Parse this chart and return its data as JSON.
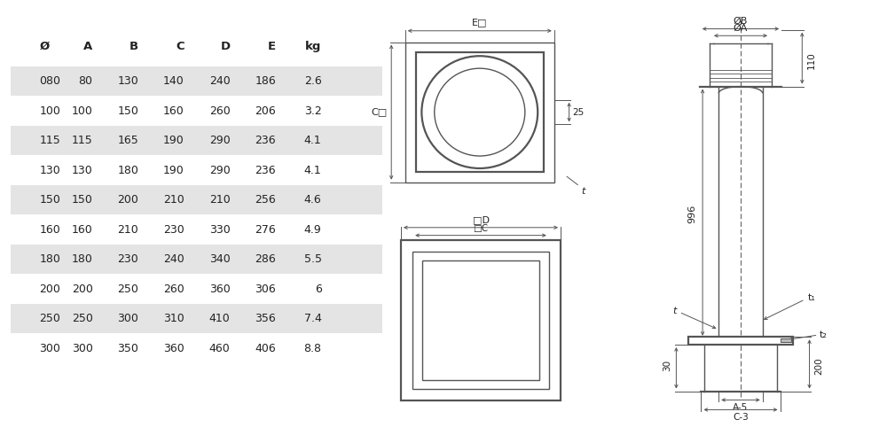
{
  "bg_color": "#ffffff",
  "line_color": "#555555",
  "dim_color": "#555555",
  "table_headers": [
    "Ø",
    "A",
    "B",
    "C",
    "D",
    "E",
    "kg"
  ],
  "table_data": [
    [
      "080",
      "80",
      "130",
      "140",
      "240",
      "186",
      "2.6"
    ],
    [
      "100",
      "100",
      "150",
      "160",
      "260",
      "206",
      "3.2"
    ],
    [
      "115",
      "115",
      "165",
      "190",
      "290",
      "236",
      "4.1"
    ],
    [
      "130",
      "130",
      "180",
      "190",
      "290",
      "236",
      "4.1"
    ],
    [
      "150",
      "150",
      "200",
      "210",
      "210",
      "256",
      "4.6"
    ],
    [
      "160",
      "160",
      "210",
      "230",
      "330",
      "276",
      "4.9"
    ],
    [
      "180",
      "180",
      "230",
      "240",
      "340",
      "286",
      "5.5"
    ],
    [
      "200",
      "200",
      "250",
      "260",
      "360",
      "306",
      "6"
    ],
    [
      "250",
      "250",
      "300",
      "310",
      "410",
      "356",
      "7.4"
    ],
    [
      "300",
      "300",
      "350",
      "360",
      "460",
      "406",
      "8.8"
    ]
  ],
  "shaded_rows": [
    0,
    2,
    4,
    6,
    8
  ]
}
